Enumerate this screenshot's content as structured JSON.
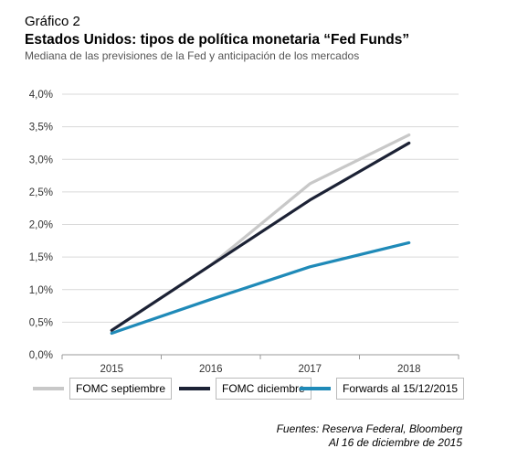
{
  "header": {
    "label": "Gráfico 2",
    "title": "Estados Unidos: tipos de política monetaria “Fed Funds”",
    "subtitle": "Mediana de las previsiones de la Fed y anticipación de los mercados"
  },
  "chart_data": {
    "type": "line",
    "title": "Estados Unidos: tipos de política monetaria “Fed Funds”",
    "subtitle": "Mediana de las previsiones de la Fed y anticipación de los mercados",
    "xlabel": "",
    "ylabel": "",
    "x": [
      "2015",
      "2016",
      "2017",
      "2018"
    ],
    "ylim": [
      0,
      4.0
    ],
    "yticks": [
      "0,0%",
      "0,5%",
      "1,0%",
      "1,5%",
      "2,0%",
      "2,5%",
      "3,0%",
      "3,5%",
      "4,0%"
    ],
    "grid": "horizontal",
    "legend_position": "bottom",
    "series": [
      {
        "name": "FOMC septiembre",
        "values": [
          0.375,
          1.375,
          2.625,
          3.375
        ],
        "color": "#c8c8c8"
      },
      {
        "name": "FOMC diciembre",
        "values": [
          0.375,
          1.375,
          2.375,
          3.25
        ],
        "color": "#1c2235"
      },
      {
        "name": "Forwards al 15/12/2015",
        "values": [
          0.33,
          0.85,
          1.35,
          1.72
        ],
        "color": "#1f8ab8"
      }
    ]
  },
  "source": {
    "line1": "Fuentes: Reserva Federal, Bloomberg",
    "line2": "Al 16 de diciembre de 2015"
  }
}
